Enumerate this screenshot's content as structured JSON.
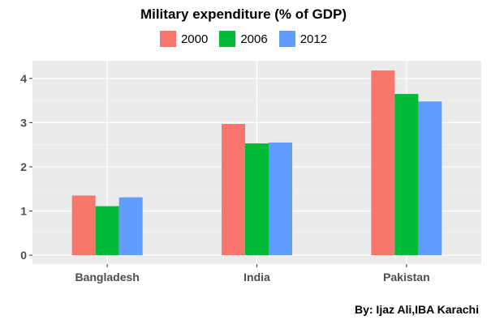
{
  "chart_data": {
    "type": "bar",
    "title": "Military expenditure (% of GDP)",
    "categories": [
      "Bangladesh",
      "India",
      "Pakistan"
    ],
    "series": [
      {
        "name": "2000",
        "color": "#F8766D",
        "values": [
          1.35,
          2.97,
          4.18
        ]
      },
      {
        "name": "2006",
        "color": "#00BA38",
        "values": [
          1.11,
          2.53,
          3.65
        ]
      },
      {
        "name": "2012",
        "color": "#619CFF",
        "values": [
          1.31,
          2.55,
          3.48
        ]
      }
    ],
    "yticks": [
      0,
      1,
      2,
      3,
      4
    ],
    "ylim": [
      -0.2,
      4.4
    ],
    "grid": true,
    "legend_position": "top"
  },
  "caption": "By: Ijaz Ali,IBA Karachi"
}
